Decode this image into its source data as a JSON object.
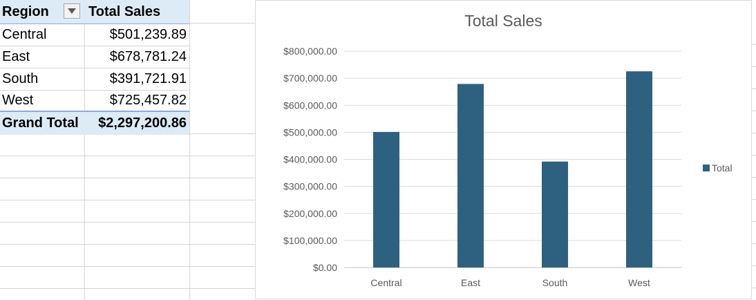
{
  "pivot": {
    "header": {
      "row_label": "Region",
      "value_label": "Total Sales"
    },
    "rows": [
      {
        "region": "Central",
        "total": "$501,239.89"
      },
      {
        "region": "East",
        "total": "$678,781.24"
      },
      {
        "region": "South",
        "total": "$391,721.91"
      },
      {
        "region": "West",
        "total": "$725,457.82"
      }
    ],
    "grand_total": {
      "label": "Grand Total",
      "total": "$2,297,200.86"
    }
  },
  "chart_data": {
    "type": "bar",
    "title": "Total Sales",
    "categories": [
      "Central",
      "East",
      "South",
      "West"
    ],
    "series": [
      {
        "name": "Total",
        "values": [
          501239.89,
          678781.24,
          391721.91,
          725457.82
        ],
        "color": "#2e6080"
      }
    ],
    "ylim": [
      0,
      800000
    ],
    "yticks": [
      0,
      100000,
      200000,
      300000,
      400000,
      500000,
      600000,
      700000,
      800000
    ],
    "ytick_labels": [
      "$0.00",
      "$100,000.00",
      "$200,000.00",
      "$300,000.00",
      "$400,000.00",
      "$500,000.00",
      "$600,000.00",
      "$700,000.00",
      "$800,000.00"
    ],
    "xlabel": "",
    "ylabel": "",
    "grid": true,
    "legend_position": "right"
  },
  "colors": {
    "bar": "#2e6080",
    "header_fill": "#ddebf7",
    "grid": "#d9d9d9"
  },
  "icons": {
    "filter": "filter-dropdown-icon"
  }
}
